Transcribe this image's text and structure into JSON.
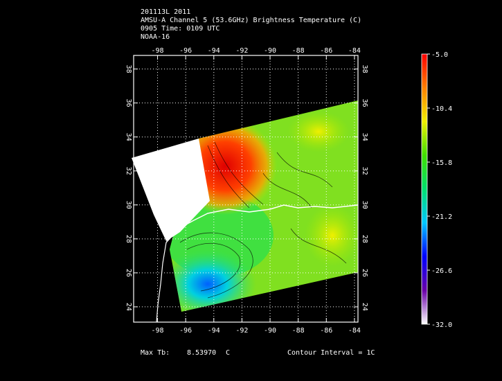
{
  "header": {
    "lines": [
      "201113L 2011",
      "AMSU-A Channel 5 (53.6GHz) Brightness Temperature (C)",
      "0905 Time: 0109 UTC",
      "NOAA-16"
    ]
  },
  "map": {
    "xlim": [
      -99.7,
      -83.75
    ],
    "ylim": [
      23.1,
      38.8
    ],
    "xticks": [
      -98,
      -96,
      -94,
      -92,
      -90,
      -88,
      -86,
      -84
    ],
    "yticks": [
      24,
      26,
      28,
      30,
      32,
      34,
      36,
      38
    ],
    "grid": true
  },
  "colorbar": {
    "lim": [
      -32,
      -5
    ],
    "ticks": [
      {
        "value": -5,
        "label": "-5.0"
      },
      {
        "value": -10.4,
        "label": "-10.4"
      },
      {
        "value": -15.8,
        "label": "-15.8"
      },
      {
        "value": -21.2,
        "label": "-21.2"
      },
      {
        "value": -26.6,
        "label": "-26.6"
      },
      {
        "value": -32,
        "label": "-32.0"
      }
    ],
    "colors": [
      "#ffffff",
      "#6a00a8",
      "#0000ff",
      "#00c8ff",
      "#00e070",
      "#40e000",
      "#f0f000",
      "#ff8000",
      "#ff0000"
    ]
  },
  "footer": {
    "max_label": "Max Tb:",
    "max_value": "8.53970",
    "max_unit": "C",
    "contour": "Contour Interval = 1C"
  }
}
